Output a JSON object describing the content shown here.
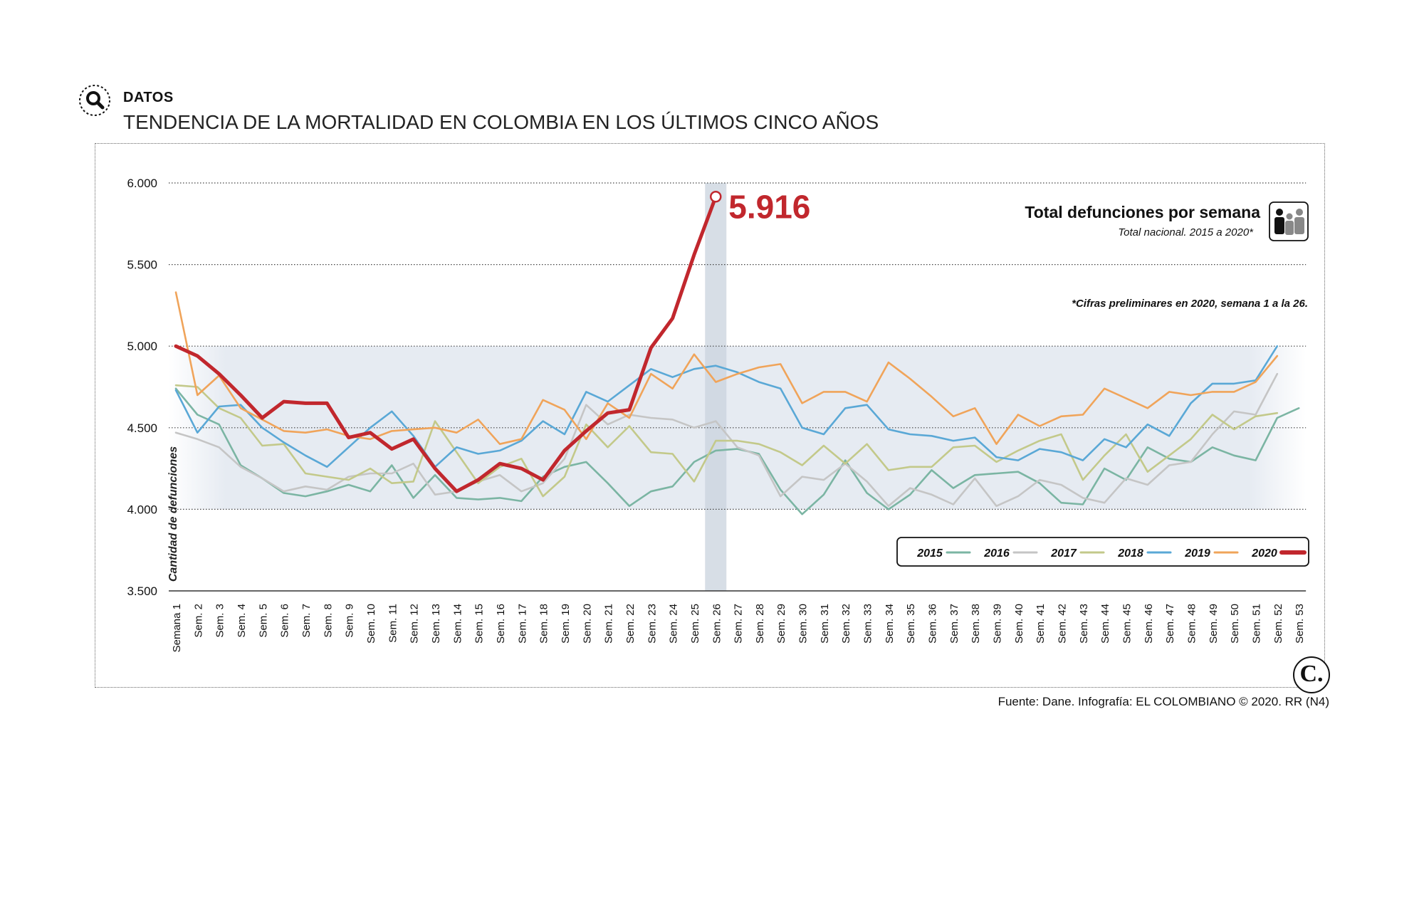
{
  "header": {
    "kicker": "DATOS",
    "title": "TENDENCIA DE LA MORTALIDAD EN COLOMBIA EN LOS ÚLTIMOS CINCO AÑOS",
    "icon": "search-icon"
  },
  "source": "Fuente: Dane. Infografía: EL COLOMBIANO © 2020. RR (N4)",
  "logo_text": "C.",
  "chart_data": {
    "type": "line",
    "title": "Total defunciones por semana",
    "subtitle": "Total nacional. 2015 a 2020*",
    "note": "*Cifras preliminares en 2020, semana 1 a la 26.",
    "ylabel": "Cantidad de defunciones",
    "xlabel": "",
    "ylim": [
      3500,
      6000
    ],
    "yticks": [
      3500,
      4000,
      4500,
      5000,
      5500,
      6000
    ],
    "ytick_labels": [
      "3.500",
      "4.000",
      "4.500",
      "5.000",
      "5.500",
      "6.000"
    ],
    "grid": true,
    "legend_position": "bottom-right",
    "highlight": {
      "week_index": 25,
      "value_label": "5.916",
      "color": "#c1272d"
    },
    "categories": [
      "Semana 1",
      "Sem. 2",
      "Sem. 3",
      "Sem. 4",
      "Sem. 5",
      "Sem. 6",
      "Sem. 7",
      "Sem. 8",
      "Sem. 9",
      "Sem. 10",
      "Sem. 11",
      "Sem. 12",
      "Sem. 13",
      "Sem. 14",
      "Sem. 15",
      "Sem. 16",
      "Sem. 17",
      "Sem. 18",
      "Sem. 19",
      "Sem. 20",
      "Sem. 21",
      "Sem. 22",
      "Sem. 23",
      "Sem. 24",
      "Sem. 25",
      "Sem. 26",
      "Sem. 27",
      "Sem. 28",
      "Sem. 29",
      "Sem. 30",
      "Sem. 31",
      "Sem. 32",
      "Sem. 33",
      "Sem. 34",
      "Sem. 35",
      "Sem. 36",
      "Sem. 37",
      "Sem. 38",
      "Sem. 39",
      "Sem. 40",
      "Sem. 41",
      "Sem. 42",
      "Sem. 43",
      "Sem. 44",
      "Sem. 45",
      "Sem. 46",
      "Sem. 47",
      "Sem. 48",
      "Sem. 49",
      "Sem. 50",
      "Sem. 51",
      "Sem. 52",
      "Sem. 53"
    ],
    "series": [
      {
        "name": "2015",
        "color": "#7bb5a3",
        "values": [
          4740,
          4580,
          4520,
          4270,
          4190,
          4100,
          4080,
          4110,
          4150,
          4110,
          4270,
          4070,
          4210,
          4070,
          4060,
          4070,
          4050,
          4200,
          4260,
          4290,
          4160,
          4020,
          4110,
          4140,
          4290,
          4360,
          4370,
          4340,
          4120,
          3970,
          4090,
          4300,
          4100,
          4000,
          4090,
          4240,
          4130,
          4210,
          4220,
          4230,
          4160,
          4040,
          4030,
          4250,
          4180,
          4380,
          4310,
          4290,
          4380,
          4330,
          4300,
          4560,
          4620
        ]
      },
      {
        "name": "2016",
        "color": "#c5c5c5",
        "values": [
          4470,
          4430,
          4380,
          4260,
          4190,
          4110,
          4140,
          4120,
          4200,
          4220,
          4220,
          4280,
          4090,
          4110,
          4170,
          4210,
          4110,
          4160,
          4310,
          4640,
          4520,
          4580,
          4560,
          4550,
          4500,
          4540,
          4380,
          4330,
          4080,
          4200,
          4180,
          4280,
          4170,
          4020,
          4130,
          4090,
          4030,
          4190,
          4020,
          4080,
          4180,
          4150,
          4070,
          4040,
          4190,
          4150,
          4270,
          4290,
          4460,
          4600,
          4580,
          4830,
          null
        ]
      },
      {
        "name": "2017",
        "color": "#c3c98a",
        "values": [
          4760,
          4750,
          4620,
          4560,
          4390,
          4400,
          4220,
          4200,
          4180,
          4250,
          4160,
          4170,
          4540,
          4350,
          4160,
          4260,
          4310,
          4080,
          4200,
          4520,
          4380,
          4510,
          4350,
          4340,
          4170,
          4420,
          4420,
          4400,
          4350,
          4270,
          4390,
          4280,
          4400,
          4240,
          4260,
          4260,
          4380,
          4390,
          4290,
          4360,
          4420,
          4460,
          4180,
          4330,
          4460,
          4230,
          4330,
          4430,
          4580,
          4490,
          4570,
          4590,
          null
        ]
      },
      {
        "name": "2018",
        "color": "#5aa8d6",
        "values": [
          4730,
          4470,
          4630,
          4640,
          4500,
          4410,
          4330,
          4260,
          4380,
          4500,
          4600,
          4450,
          4260,
          4380,
          4340,
          4360,
          4420,
          4540,
          4460,
          4720,
          4660,
          4760,
          4860,
          4810,
          4860,
          4880,
          4840,
          4780,
          4740,
          4500,
          4460,
          4620,
          4640,
          4490,
          4460,
          4450,
          4420,
          4440,
          4320,
          4300,
          4370,
          4350,
          4300,
          4430,
          4380,
          4520,
          4450,
          4650,
          4770,
          4770,
          4790,
          5000,
          null
        ]
      },
      {
        "name": "2019",
        "color": "#f0a45a",
        "values": [
          5330,
          4700,
          4820,
          4620,
          4550,
          4480,
          4470,
          4490,
          4450,
          4430,
          4480,
          4490,
          4500,
          4470,
          4550,
          4400,
          4430,
          4670,
          4610,
          4430,
          4650,
          4560,
          4830,
          4740,
          4950,
          4780,
          4830,
          4870,
          4890,
          4650,
          4720,
          4720,
          4660,
          4900,
          4800,
          4690,
          4570,
          4620,
          4400,
          4580,
          4510,
          4570,
          4580,
          4740,
          4680,
          4620,
          4720,
          4700,
          4720,
          4720,
          4780,
          4940,
          null
        ]
      },
      {
        "name": "2020",
        "color": "#c1272d",
        "values": [
          5000,
          4940,
          4830,
          4700,
          4560,
          4660,
          4650,
          4650,
          4440,
          4470,
          4370,
          4430,
          4250,
          4110,
          4180,
          4280,
          4250,
          4180,
          4360,
          4480,
          4590,
          4610,
          4990,
          5170,
          5560,
          5916,
          null,
          null,
          null,
          null,
          null,
          null,
          null,
          null,
          null,
          null,
          null,
          null,
          null,
          null,
          null,
          null,
          null,
          null,
          null,
          null,
          null,
          null,
          null,
          null,
          null,
          null,
          null
        ]
      }
    ]
  }
}
